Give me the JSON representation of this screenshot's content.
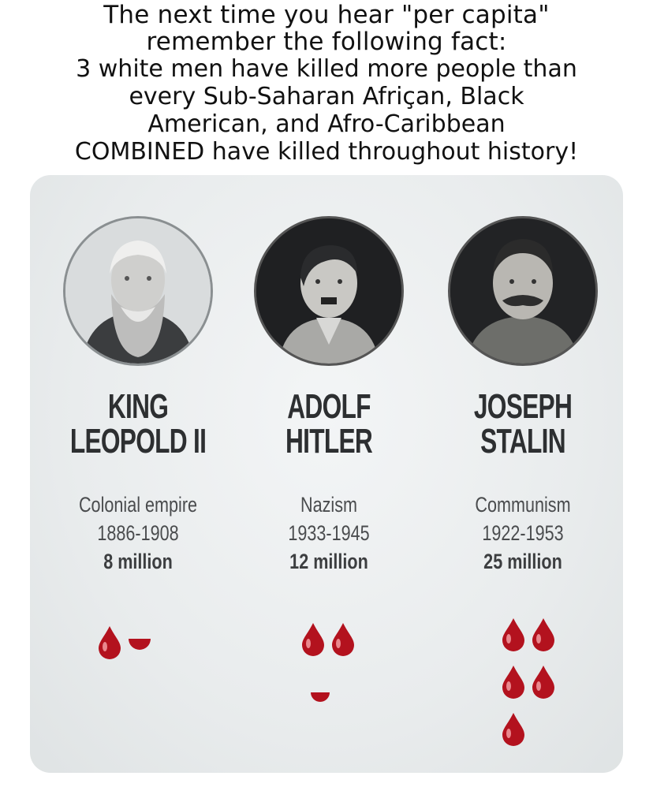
{
  "caption": {
    "line1": "The next time you hear \"per capita\"",
    "line2": "remember the following fact:",
    "line3": "3 white men have killed more people than",
    "line4": "every Sub-Saharan Afriçan, Black",
    "line5": "American, and Afro-Caribbean",
    "line6": "COMBINED have killed throughout history!"
  },
  "people": [
    {
      "name_line1": "KING",
      "name_line2": "LEOPOLD II",
      "ideology": "Colonial empire",
      "years": "1886-1908",
      "deaths": "8 million",
      "deaths_millions": 8,
      "full_drops": 1,
      "partial_drop": true
    },
    {
      "name_line1": "ADOLF",
      "name_line2": "HITLER",
      "ideology": "Nazism",
      "years": "1933-1945",
      "deaths": "12 million",
      "deaths_millions": 12,
      "full_drops": 2,
      "partial_drop": true
    },
    {
      "name_line1": "JOSEPH",
      "name_line2": "STALIN",
      "ideology": "Communism",
      "years": "1922-1953",
      "deaths": "25 million",
      "deaths_millions": 25,
      "full_drops": 5,
      "partial_drop": false
    }
  ],
  "colors": {
    "blood": "#b3121e",
    "panel": "#eceff0",
    "text": "#2d2f31"
  },
  "icons": {
    "portrait": "person-portrait-icon",
    "drop": "blood-drop-icon"
  }
}
